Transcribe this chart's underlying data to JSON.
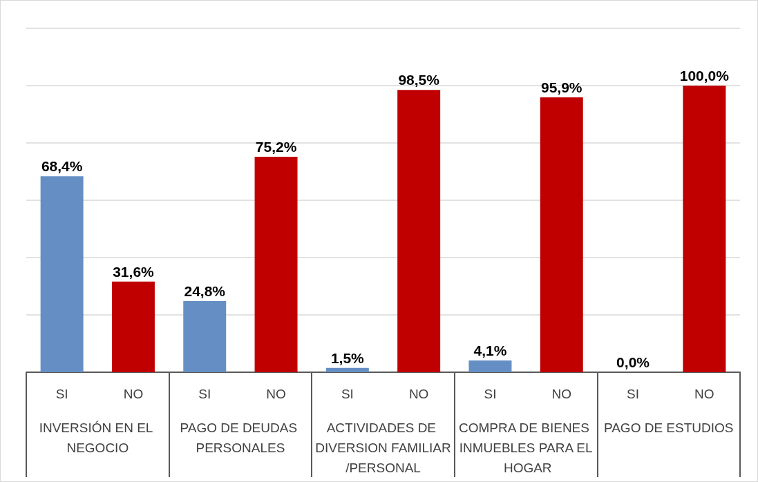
{
  "chart_data": {
    "type": "bar",
    "categories": [
      "SI",
      "NO",
      "SI",
      "NO",
      "SI",
      "NO",
      "SI",
      "NO",
      "SI",
      "NO"
    ],
    "values": [
      68.4,
      31.6,
      24.8,
      75.2,
      1.5,
      98.5,
      4.1,
      95.9,
      0.0,
      100.0
    ],
    "colors": [
      "#658fc4",
      "#c00000",
      "#658fc4",
      "#c00000",
      "#658fc4",
      "#c00000",
      "#658fc4",
      "#c00000",
      "#658fc4",
      "#c00000"
    ],
    "value_labels": [
      "68,4%",
      "31,6%",
      "24,8%",
      "75,2%",
      "1,5%",
      "98,5%",
      "4,1%",
      "95,9%",
      "0,0%",
      "100,0%"
    ],
    "annotations": [
      "INVERSIÓN EN EL NEGOCIO",
      "PAGO DE DEUDAS PERSONALES",
      "ACTIVIDADES DE DIVERSION FAMILIAR/PERSONAL",
      "COMPRA DE BIENES INMUEBLES PARA EL HOGAR",
      "PAGO DE ESTUDIOS"
    ],
    "ylim": [
      0,
      120
    ],
    "yticks": [
      {
        "value": 0,
        "label": null
      },
      {
        "value": 20,
        "label": null
      },
      {
        "value": 40,
        "label": null
      },
      {
        "value": 60,
        "label": null
      },
      {
        "value": 80,
        "label": null
      },
      {
        "value": 100,
        "label": null
      },
      {
        "value": 120,
        "label": null
      }
    ],
    "grid": "y",
    "tick_labels": "x"
  }
}
